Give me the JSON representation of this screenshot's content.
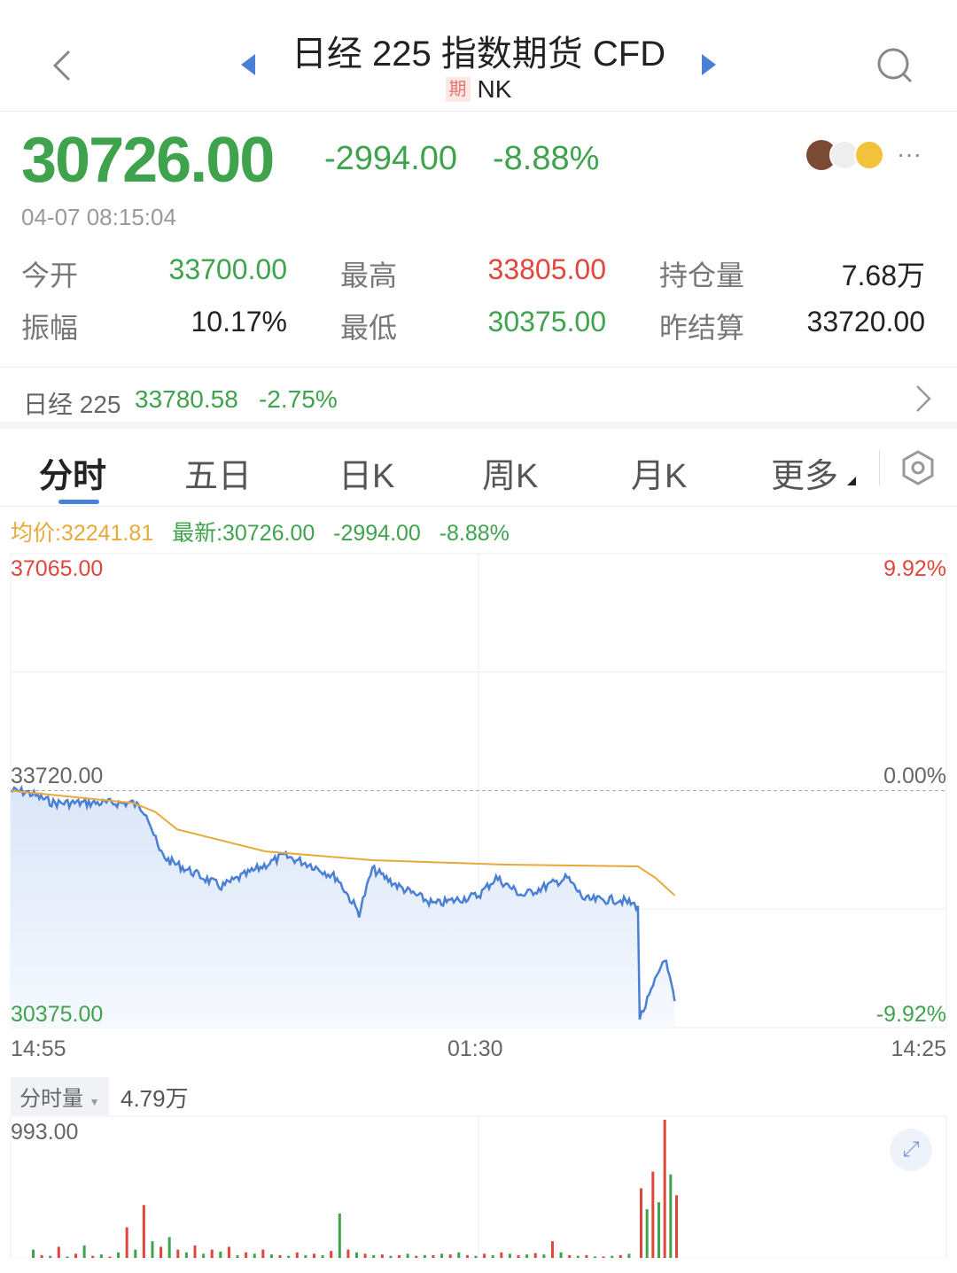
{
  "header": {
    "title": "日经 225 指数期货 CFD",
    "badge": "期",
    "code": "NK"
  },
  "quote": {
    "price": "30726.00",
    "change": "-2994.00",
    "change_pct": "-8.88%",
    "time": "04-07 08:15:04"
  },
  "stats": [
    {
      "label": "今开",
      "value": "33700.00",
      "color": "green"
    },
    {
      "label": "最高",
      "value": "33805.00",
      "color": "red"
    },
    {
      "label": "持仓量",
      "value": "7.68万",
      "color": "dark"
    },
    {
      "label": "振幅",
      "value": "10.17%",
      "color": "dark"
    },
    {
      "label": "最低",
      "value": "30375.00",
      "color": "green"
    },
    {
      "label": "昨结算",
      "value": "33720.00",
      "color": "dark"
    }
  ],
  "index_row": {
    "name": "日经 225",
    "value": "33780.58",
    "pct": "-2.75%"
  },
  "tabs": [
    "分时",
    "五日",
    "日K",
    "周K",
    "月K",
    "更多"
  ],
  "active_tab": 0,
  "legend": {
    "avg": "均价:32241.81",
    "latest": "最新:30726.00",
    "change": "-2994.00",
    "pct": "-8.88%"
  },
  "colors": {
    "green": "#3fa34d",
    "red": "#e0463c",
    "price_line": "#4a7fd6",
    "avg_line": "#e8a93a",
    "accent": "#4a7fd6"
  },
  "chart_data": {
    "type": "line",
    "ylim": [
      30375,
      37065
    ],
    "y_labels": {
      "top": "37065.00",
      "mid": "33720.00",
      "bottom": "30375.00"
    },
    "pct_labels": {
      "top": "9.92%",
      "mid": "0.00%",
      "bottom": "-9.92%"
    },
    "x_labels": [
      "14:55",
      "01:30",
      "14:25"
    ],
    "price": [
      [
        "14:55",
        33720
      ],
      [
        "15:17",
        33700
      ],
      [
        "15:53",
        33546
      ],
      [
        "16:41",
        33546
      ],
      [
        "17:41",
        33546
      ],
      [
        "17:59",
        33422
      ],
      [
        "18:17",
        32862
      ],
      [
        "18:29",
        32738
      ],
      [
        "18:41",
        32676
      ],
      [
        "19:41",
        32365
      ],
      [
        "20:05",
        32489
      ],
      [
        "21:06",
        32800
      ],
      [
        "21:42",
        32676
      ],
      [
        "22:18",
        32489
      ],
      [
        "22:48",
        31992
      ],
      [
        "23:06",
        32614
      ],
      [
        "23:42",
        32365
      ],
      [
        "00:30",
        32116
      ],
      [
        "01:30",
        32241
      ],
      [
        "01:59",
        32489
      ],
      [
        "02:43",
        32241
      ],
      [
        "03:57",
        32489
      ],
      [
        "04:26",
        32179
      ],
      [
        "05:25",
        32179
      ],
      [
        "05:54",
        32092
      ],
      [
        "05:57",
        30501
      ],
      [
        "06:16",
        30874
      ],
      [
        "06:38",
        31371
      ],
      [
        "06:55",
        30749
      ]
    ],
    "avg": [
      [
        "14:55",
        33720
      ],
      [
        "17:41",
        33546
      ],
      [
        "18:11",
        33422
      ],
      [
        "18:41",
        33173
      ],
      [
        "20:41",
        32862
      ],
      [
        "23:06",
        32738
      ],
      [
        "02:14",
        32676
      ],
      [
        "05:54",
        32651
      ],
      [
        "06:23",
        32489
      ],
      [
        "06:55",
        32241
      ]
    ],
    "volume": {
      "label": "分时量",
      "total": "4.79万",
      "max_label": "993.00",
      "max": 993,
      "values": [
        60,
        20,
        15,
        80,
        10,
        30,
        90,
        15,
        25,
        10,
        40,
        220,
        60,
        380,
        120,
        80,
        150,
        60,
        40,
        90,
        30,
        60,
        45,
        80,
        20,
        40,
        30,
        60,
        25,
        20,
        15,
        40,
        20,
        30,
        20,
        50,
        320,
        60,
        40,
        30,
        20,
        25,
        15,
        20,
        30,
        15,
        20,
        20,
        30,
        25,
        40,
        20,
        15,
        30,
        20,
        40,
        30,
        20,
        25,
        35,
        25,
        120,
        40,
        20,
        15,
        20,
        10,
        10,
        15,
        20,
        30,
        500,
        350,
        620,
        400,
        993,
        600,
        450
      ]
    }
  }
}
